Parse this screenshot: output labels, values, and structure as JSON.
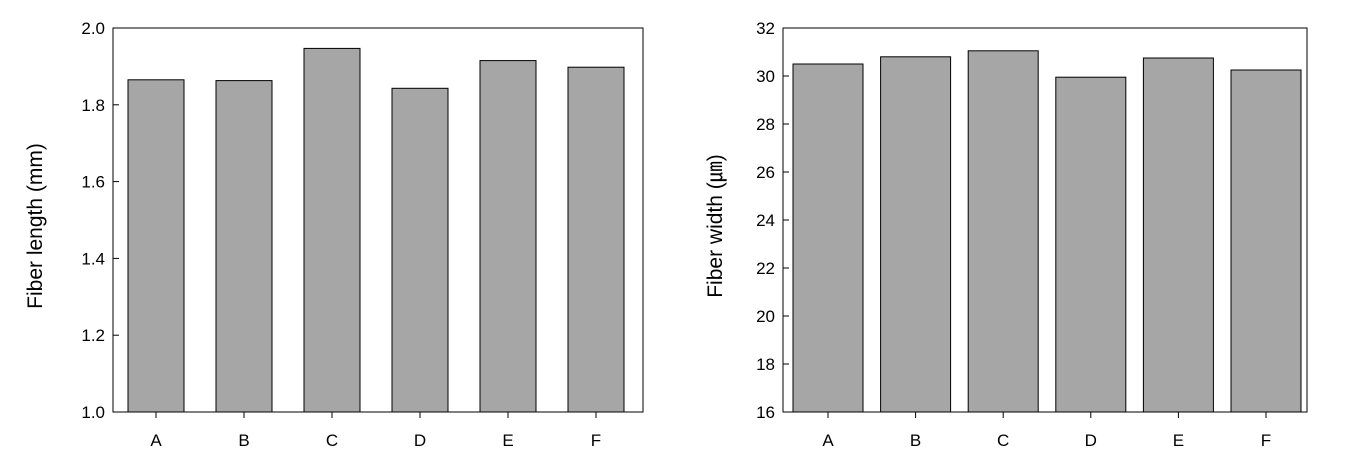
{
  "chart_data": [
    {
      "type": "bar",
      "title": "",
      "xlabel": "",
      "ylabel": "Fiber length (mm)",
      "categories": [
        "A",
        "B",
        "C",
        "D",
        "E",
        "F"
      ],
      "values": [
        1.865,
        1.863,
        1.947,
        1.843,
        1.915,
        1.898
      ],
      "ylim": [
        1.0,
        2.0
      ],
      "yticks": [
        "1.0",
        "1.2",
        "1.4",
        "1.6",
        "1.8",
        "2.0"
      ],
      "ytick_values": [
        1.0,
        1.2,
        1.4,
        1.6,
        1.8,
        2.0
      ],
      "grid": false,
      "legend": "none",
      "bar_color": "#a6a6a6"
    },
    {
      "type": "bar",
      "title": "",
      "xlabel": "",
      "ylabel": "Fiber width (㎛)",
      "categories": [
        "A",
        "B",
        "C",
        "D",
        "E",
        "F"
      ],
      "values": [
        30.5,
        30.8,
        31.05,
        29.95,
        30.75,
        30.25
      ],
      "ylim": [
        16,
        32
      ],
      "yticks": [
        "16",
        "18",
        "20",
        "22",
        "24",
        "26",
        "28",
        "30",
        "32"
      ],
      "ytick_values": [
        16,
        18,
        20,
        22,
        24,
        26,
        28,
        30,
        32
      ],
      "grid": false,
      "legend": "none",
      "bar_color": "#a6a6a6"
    }
  ]
}
